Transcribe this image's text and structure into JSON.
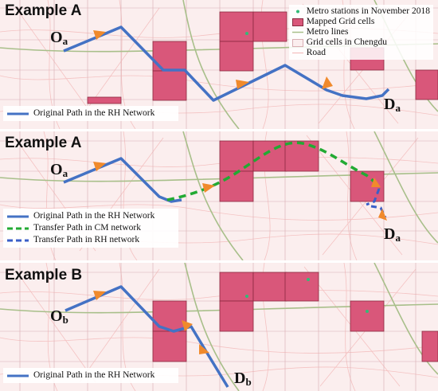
{
  "panels": [
    {
      "title": "Example A",
      "origin": {
        "base": "O",
        "sub": "a"
      },
      "destination": {
        "base": "D",
        "sub": "a"
      },
      "legend": [
        "Original Path in the RH Network"
      ]
    },
    {
      "title": "Example A",
      "origin": {
        "base": "O",
        "sub": "a"
      },
      "destination": {
        "base": "D",
        "sub": "a"
      },
      "legend": [
        "Original Path in the RH Network",
        "Transfer Path in CM network",
        "Transfer Path in RH network"
      ]
    },
    {
      "title": "Example B",
      "origin": {
        "base": "O",
        "sub": "b"
      },
      "destination": {
        "base": "D",
        "sub": "b"
      },
      "legend": [
        "Original Path in the RH Network"
      ]
    }
  ],
  "map_legend": {
    "metro_stations": "Metro stations in November 2018",
    "mapped_grid_cells": "Mapped Grid cells",
    "metro_lines": "Metro lines",
    "grid_cells": "Grid cells in Chengdu",
    "road": "Road"
  },
  "colors": {
    "original_path": "#4472c4",
    "cm_transfer": "#22aa33",
    "rh_transfer": "#3a5fc8",
    "arrow": "#f08a2c",
    "grid_cell_fill": "#d9577a",
    "metro_station": "#33bb77",
    "metro_line": "#a8bf8a",
    "road": "#f2b5b5",
    "background": "#fbeeee"
  }
}
